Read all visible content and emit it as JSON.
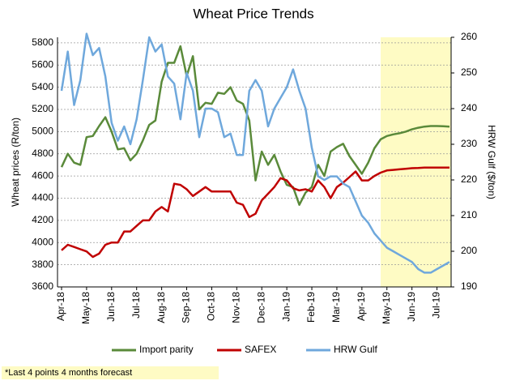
{
  "chart_data": {
    "type": "line",
    "title": "Wheat Price Trends",
    "y_label": "Wheat prices (R/ton)",
    "y2_label": "HRW Gulf ($/ton)",
    "note": "*Last 4 points 4 months forecast",
    "categories": [
      "Apr-18",
      null,
      null,
      null,
      "May-18",
      null,
      null,
      null,
      "Jun-18",
      null,
      null,
      null,
      "Jul-18",
      null,
      null,
      null,
      "Aug-18",
      null,
      null,
      null,
      "Sep-18",
      null,
      null,
      null,
      "Oct-18",
      null,
      null,
      null,
      "Nov-18",
      null,
      null,
      null,
      "Dec-18",
      null,
      null,
      null,
      "Jan-19",
      null,
      null,
      null,
      "Feb-19",
      null,
      null,
      null,
      "Mar-19",
      null,
      null,
      null,
      "Apr-19",
      null,
      null,
      null,
      "May-19",
      null,
      null,
      null,
      "Jun-19",
      null,
      null,
      null,
      "Jul-19",
      null,
      null
    ],
    "series": [
      {
        "name": "Import parity",
        "color": "#5a8a3a",
        "values": [
          4680,
          4800,
          4720,
          4700,
          4950,
          4960,
          5050,
          5130,
          5000,
          4840,
          4850,
          4740,
          4800,
          4920,
          5060,
          5100,
          5450,
          5620,
          5620,
          5770,
          5500,
          5680,
          5200,
          5260,
          5250,
          5350,
          5340,
          5400,
          5280,
          5250,
          5100,
          4560,
          4820,
          4700,
          4790,
          4640,
          4520,
          4500,
          4340,
          4450,
          4500,
          4700,
          4600,
          4820,
          4860,
          4890,
          4780,
          4700,
          4620,
          4720,
          4850,
          4930,
          4960,
          4975,
          4985,
          5000,
          5020,
          5035,
          5045,
          5050,
          5050,
          5048,
          5045
        ]
      },
      {
        "name": "SAFEX",
        "color": "#c00000",
        "values": [
          3930,
          3980,
          3960,
          3940,
          3920,
          3870,
          3900,
          3980,
          4000,
          4000,
          4100,
          4100,
          4150,
          4200,
          4200,
          4280,
          4320,
          4280,
          4530,
          4520,
          4480,
          4420,
          4460,
          4500,
          4460,
          4460,
          4460,
          4460,
          4360,
          4340,
          4230,
          4260,
          4380,
          4440,
          4500,
          4580,
          4560,
          4490,
          4470,
          4480,
          4460,
          4560,
          4500,
          4400,
          4500,
          4540,
          4590,
          4640,
          4560,
          4560,
          4600,
          4630,
          4650,
          4655,
          4660,
          4665,
          4670,
          4672,
          4675,
          4675,
          4675,
          4675,
          4675
        ]
      },
      {
        "name": "HRW Gulf",
        "color": "#6fa8dc",
        "axis": "y2",
        "values": [
          245,
          256,
          241,
          248,
          261,
          255,
          257,
          249,
          236,
          231,
          235,
          230,
          237,
          248,
          260,
          256,
          258,
          249,
          247,
          237,
          250,
          245,
          232,
          240,
          240,
          239,
          232,
          233,
          227,
          227,
          245,
          248,
          245,
          235,
          240,
          243,
          246,
          251,
          245,
          240,
          229,
          221,
          220,
          221,
          221,
          219,
          218,
          214,
          210,
          208,
          205,
          203,
          201,
          200,
          199,
          198,
          197,
          195,
          194,
          194,
          195,
          196,
          197
        ]
      }
    ],
    "ylim": [
      3600,
      5850
    ],
    "yticks": [
      3600,
      3800,
      4000,
      4200,
      4400,
      4600,
      4800,
      5000,
      5200,
      5400,
      5600,
      5800
    ],
    "y2lim": [
      190,
      260
    ],
    "y2ticks": [
      190,
      200,
      210,
      220,
      230,
      240,
      250,
      260
    ],
    "grid": true,
    "legend": "bottom"
  }
}
